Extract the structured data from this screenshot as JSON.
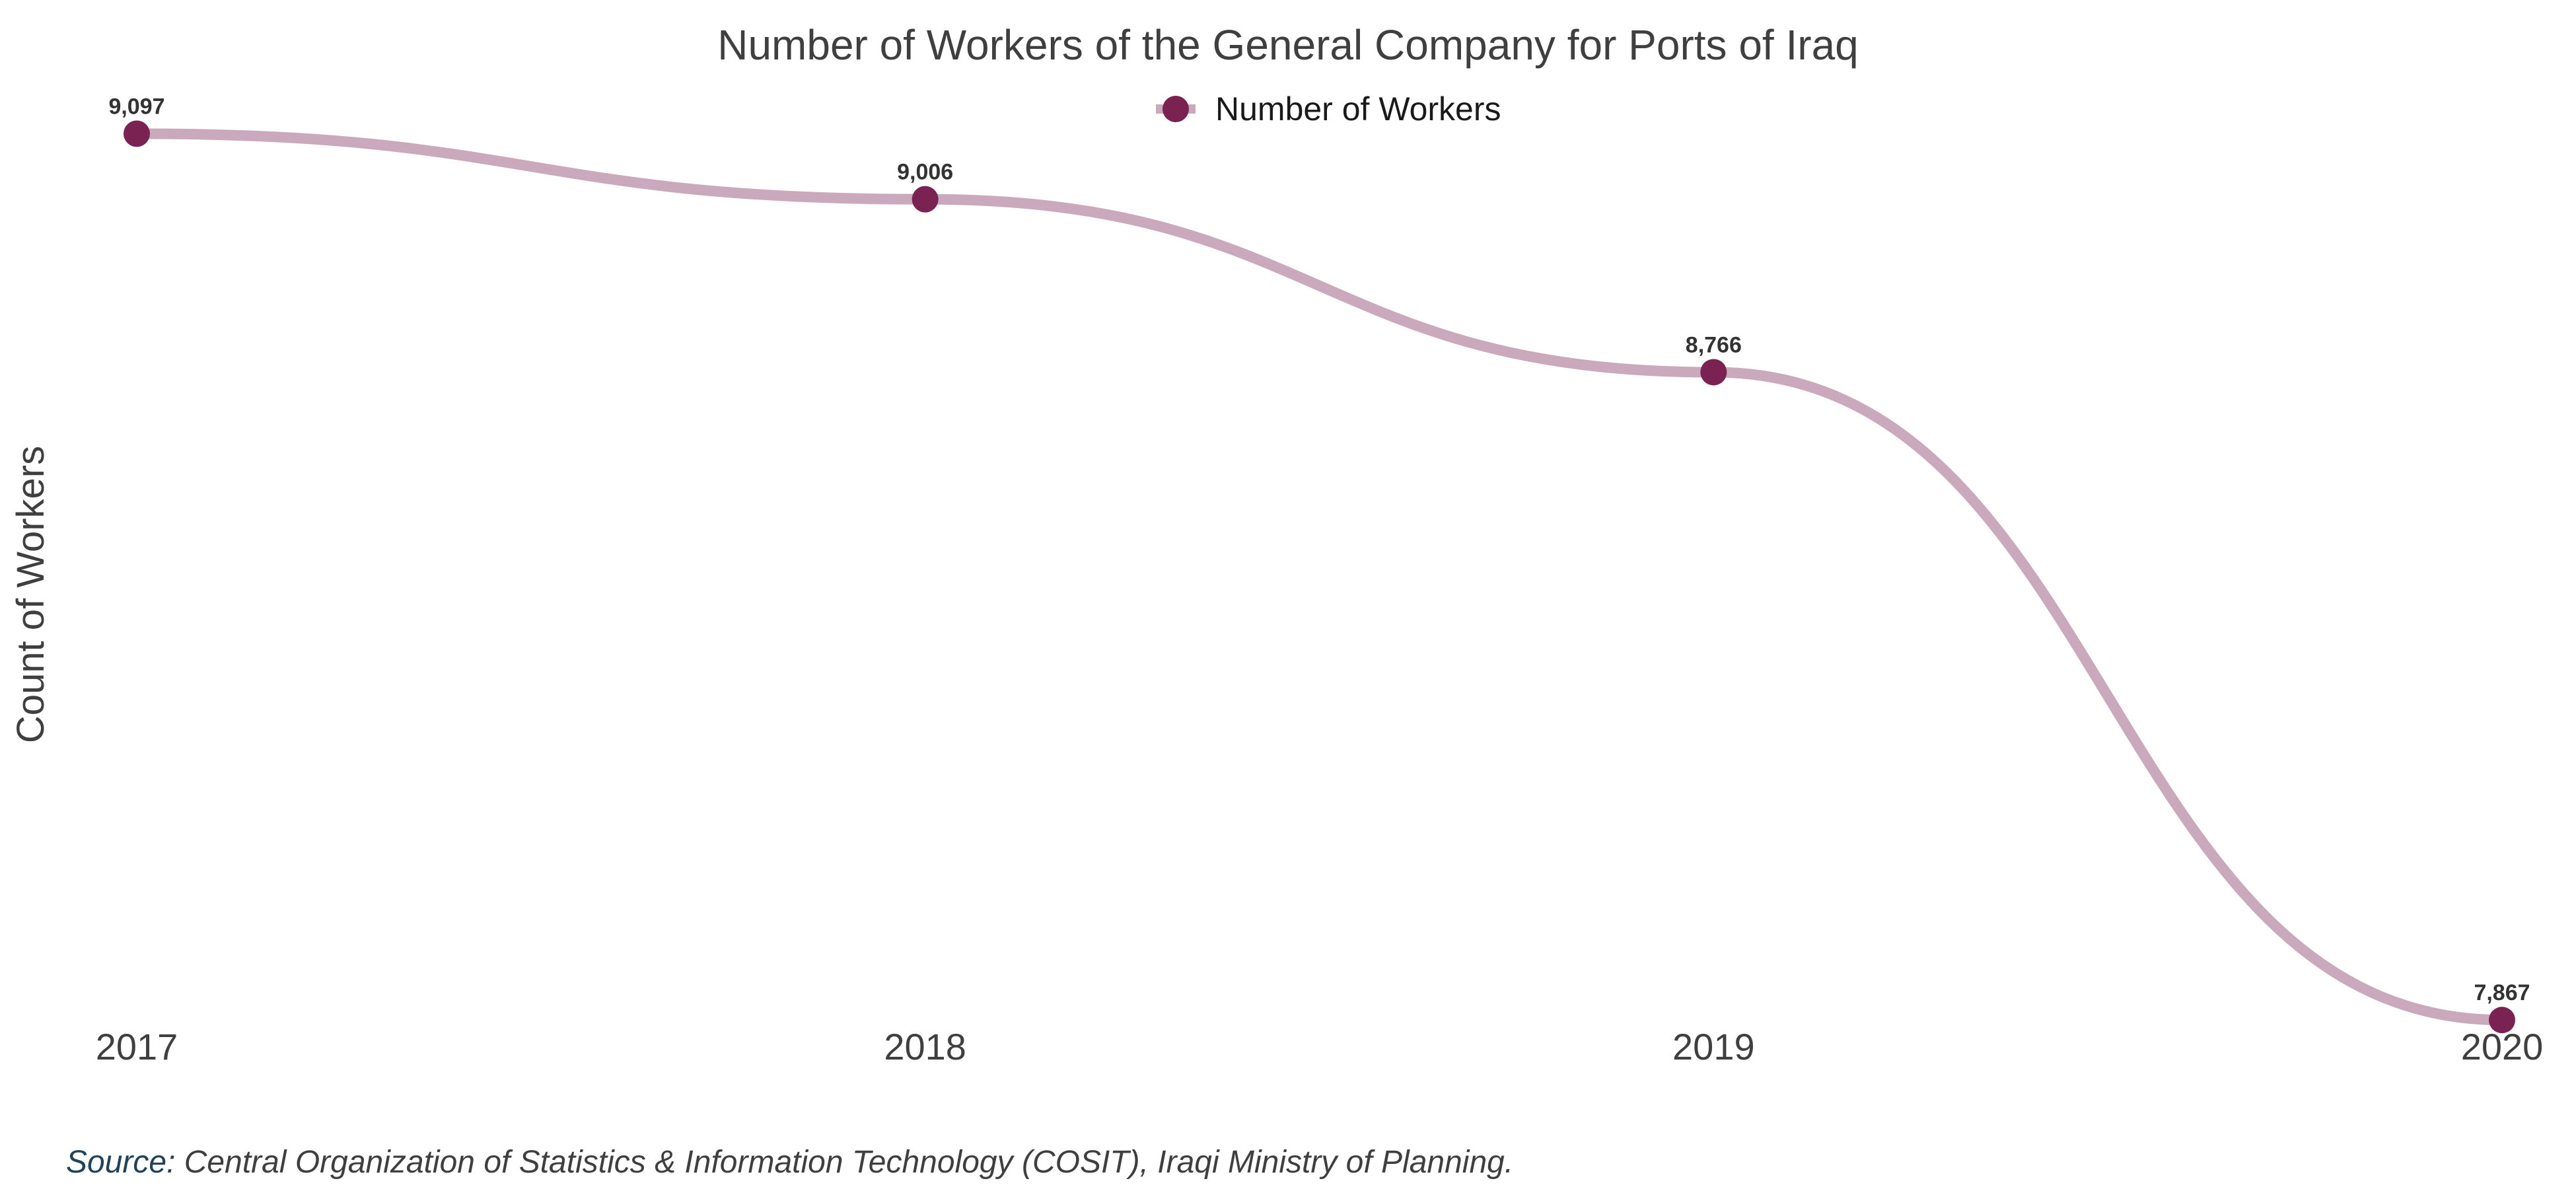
{
  "colors": {
    "line": "#c9a9bb",
    "marker": "#7a2352",
    "text": "#3f3f3f",
    "source_prefix": "#21435a"
  },
  "chart_data": {
    "type": "line",
    "title": "Number of Workers of the General Company for Ports of Iraq",
    "xlabel": "",
    "ylabel": "Count of Workers",
    "categories": [
      "2017",
      "2018",
      "2019",
      "2020"
    ],
    "series": [
      {
        "name": "Number of Workers",
        "values": [
          9097,
          9006,
          8766,
          7867
        ],
        "labels": [
          "9,097",
          "9,006",
          "8,766",
          "7,867"
        ]
      }
    ],
    "ylim": [
      7770,
      9200
    ],
    "grid": false,
    "legend": "top-center",
    "curve": "smooth"
  },
  "source": {
    "prefix": "Source:",
    "text": " Central Organization of Statistics & Information Technology (COSIT), Iraqi Ministry of Planning."
  }
}
